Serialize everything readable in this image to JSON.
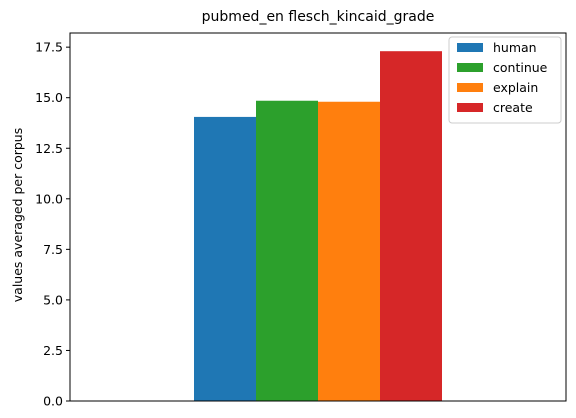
{
  "chart_data": {
    "type": "bar",
    "title": "pubmed_en flesch_kincaid_grade",
    "xlabel": "",
    "ylabel": "values averaged per corpus",
    "ylim": [
      0,
      18.2
    ],
    "yticks": [
      0,
      2.5,
      5,
      7.5,
      10,
      12.5,
      15,
      17.5
    ],
    "ytick_labels": [
      "0.0",
      "2.5",
      "5.0",
      "7.5",
      "10.0",
      "12.5",
      "15.0",
      "17.5"
    ],
    "categories": [
      ""
    ],
    "series": [
      {
        "name": "human",
        "values": [
          14.05
        ],
        "color": "#1f77b4"
      },
      {
        "name": "continue",
        "values": [
          14.85
        ],
        "color": "#2ca02c"
      },
      {
        "name": "explain",
        "values": [
          14.8
        ],
        "color": "#ff7f0e"
      },
      {
        "name": "create",
        "values": [
          17.3
        ],
        "color": "#d62728"
      }
    ],
    "legend_position": "top-right",
    "grid": false
  }
}
